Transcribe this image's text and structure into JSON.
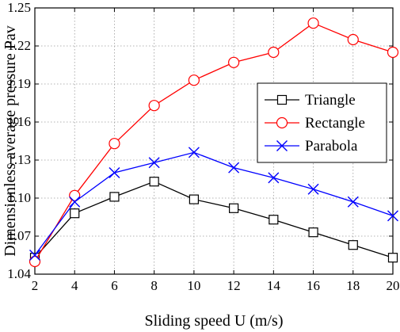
{
  "chart_data": {
    "type": "line",
    "xlabel": "Sliding speed U (m/s)",
    "ylabel": "Dimensionless average pressure Pav",
    "x": [
      2,
      4,
      6,
      8,
      10,
      12,
      14,
      16,
      18,
      20
    ],
    "xlim": [
      2,
      20
    ],
    "ylim": [
      1.04,
      1.25
    ],
    "xticks": [
      "2",
      "4",
      "6",
      "8",
      "10",
      "12",
      "14",
      "16",
      "18",
      "20"
    ],
    "yticks": [
      "1.04",
      "1.07",
      "1.10",
      "1.13",
      "1.16",
      "1.19",
      "1.22",
      "1.25"
    ],
    "grid": true,
    "legend_position": "right",
    "series": [
      {
        "name": "Triangle",
        "color": "#000000",
        "marker": "square",
        "values": [
          1.053,
          1.088,
          1.101,
          1.113,
          1.099,
          1.092,
          1.083,
          1.073,
          1.063,
          1.053
        ]
      },
      {
        "name": "Rectangle",
        "color": "#ff0000",
        "marker": "circle",
        "values": [
          1.05,
          1.102,
          1.143,
          1.173,
          1.193,
          1.207,
          1.215,
          1.238,
          1.225,
          1.215
        ]
      },
      {
        "name": "Parabola",
        "color": "#0000ff",
        "marker": "x",
        "values": [
          1.055,
          1.097,
          1.12,
          1.128,
          1.136,
          1.124,
          1.116,
          1.107,
          1.097,
          1.086
        ]
      }
    ]
  }
}
